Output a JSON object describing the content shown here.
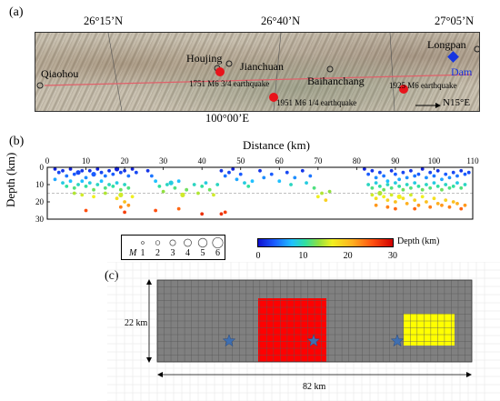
{
  "panels": {
    "a": "(a)",
    "b": "(b)",
    "c": "(c)"
  },
  "panel_a": {
    "coords_top": [
      "26°15’N",
      "26°40’N",
      "27°05’N"
    ],
    "coord_bottom": "100°00’E",
    "places": {
      "qiaohou": "Qiaohou",
      "houjing": "Houjing",
      "jianchuan": "Jianchuan",
      "baihanchang": "Baihanchang",
      "longpan": "Longpan",
      "dam": "Dam"
    },
    "earthquakes": {
      "eq1751": "1751 M6 3/4 earthquake",
      "eq1951": "1951 M6 1/4 earthquake",
      "eq1925": "1925 M6 earthquake"
    },
    "direction": "N15°E",
    "colors": {
      "quake": "#e8141b",
      "dam": "#1535e0",
      "fault": "#e0606a"
    }
  },
  "chart_data": {
    "type": "scatter",
    "xlabel": "Distance (km)",
    "ylabel": "Depth (km)",
    "xlim": [
      0,
      110
    ],
    "ylim": [
      0,
      30
    ],
    "x_ticks": [
      0,
      10,
      20,
      30,
      40,
      50,
      60,
      70,
      80,
      90,
      100,
      110
    ],
    "y_ticks": [
      0,
      10,
      20,
      30
    ],
    "y_inverted": true,
    "reference_depth_line": 15,
    "colorbar": {
      "label": "Depth (km)",
      "min": 0,
      "max": 30,
      "ticks": [
        0,
        10,
        20,
        30
      ]
    },
    "magnitude_legend": {
      "symbol": "M",
      "values": [
        1,
        2,
        3,
        4,
        5,
        6
      ]
    },
    "points": [
      [
        2,
        1,
        2
      ],
      [
        3,
        3,
        2
      ],
      [
        4,
        2,
        1
      ],
      [
        5,
        5,
        2
      ],
      [
        6,
        1,
        2
      ],
      [
        7,
        4,
        2
      ],
      [
        8,
        3,
        3
      ],
      [
        9,
        2,
        2
      ],
      [
        10,
        6,
        2
      ],
      [
        11,
        2,
        2
      ],
      [
        12,
        4,
        3
      ],
      [
        13,
        1,
        2
      ],
      [
        14,
        3,
        2
      ],
      [
        15,
        5,
        2
      ],
      [
        16,
        2,
        2
      ],
      [
        17,
        4,
        2
      ],
      [
        18,
        1,
        3
      ],
      [
        19,
        3,
        2
      ],
      [
        20,
        2,
        2
      ],
      [
        21,
        5,
        2
      ],
      [
        22,
        1,
        2
      ],
      [
        23,
        3,
        2
      ],
      [
        2,
        7,
        2
      ],
      [
        4,
        9,
        2
      ],
      [
        5,
        11,
        2
      ],
      [
        6,
        8,
        2
      ],
      [
        7,
        12,
        2
      ],
      [
        8,
        10,
        2
      ],
      [
        9,
        8,
        2
      ],
      [
        10,
        11,
        2
      ],
      [
        11,
        9,
        2
      ],
      [
        12,
        13,
        2
      ],
      [
        13,
        10,
        2
      ],
      [
        14,
        8,
        2
      ],
      [
        15,
        12,
        2
      ],
      [
        16,
        10,
        2
      ],
      [
        17,
        11,
        2
      ],
      [
        18,
        9,
        2
      ],
      [
        19,
        13,
        2
      ],
      [
        20,
        10,
        2
      ],
      [
        21,
        12,
        2
      ],
      [
        7,
        15,
        2
      ],
      [
        9,
        16,
        2
      ],
      [
        12,
        17,
        2
      ],
      [
        15,
        15,
        2
      ],
      [
        18,
        18,
        2
      ],
      [
        19,
        16,
        3
      ],
      [
        20,
        20,
        2
      ],
      [
        21,
        22,
        2
      ],
      [
        22,
        17,
        2
      ],
      [
        10,
        25,
        2
      ],
      [
        19,
        23,
        2
      ],
      [
        20,
        26,
        2
      ],
      [
        26,
        2,
        2
      ],
      [
        27,
        5,
        2
      ],
      [
        28,
        8,
        2
      ],
      [
        29,
        11,
        2
      ],
      [
        30,
        14,
        2
      ],
      [
        31,
        10,
        2
      ],
      [
        32,
        9,
        3
      ],
      [
        33,
        12,
        2
      ],
      [
        34,
        8,
        2
      ],
      [
        35,
        16,
        3
      ],
      [
        36,
        13,
        2
      ],
      [
        38,
        10,
        2
      ],
      [
        39,
        15,
        2
      ],
      [
        40,
        11,
        2
      ],
      [
        41,
        9,
        2
      ],
      [
        42,
        13,
        2
      ],
      [
        43,
        16,
        2
      ],
      [
        44,
        10,
        2
      ],
      [
        45,
        2,
        2
      ],
      [
        46,
        5,
        2
      ],
      [
        47,
        3,
        2
      ],
      [
        48,
        1,
        2
      ],
      [
        49,
        7,
        2
      ],
      [
        50,
        4,
        2
      ],
      [
        51,
        9,
        2
      ],
      [
        52,
        11,
        2
      ],
      [
        53,
        8,
        2
      ],
      [
        28,
        25,
        2
      ],
      [
        34,
        24,
        2
      ],
      [
        40,
        27,
        2
      ],
      [
        45,
        27,
        2
      ],
      [
        46,
        26,
        2
      ],
      [
        55,
        2,
        2
      ],
      [
        56,
        6,
        2
      ],
      [
        58,
        4,
        2
      ],
      [
        60,
        8,
        2
      ],
      [
        62,
        3,
        2
      ],
      [
        63,
        10,
        2
      ],
      [
        64,
        6,
        2
      ],
      [
        66,
        2,
        2
      ],
      [
        67,
        9,
        2
      ],
      [
        68,
        5,
        2
      ],
      [
        69,
        12,
        2
      ],
      [
        70,
        17,
        2
      ],
      [
        71,
        15,
        2
      ],
      [
        72,
        19,
        2
      ],
      [
        73,
        14,
        2
      ],
      [
        82,
        1,
        2
      ],
      [
        83,
        4,
        2
      ],
      [
        84,
        2,
        2
      ],
      [
        85,
        6,
        2
      ],
      [
        86,
        3,
        2
      ],
      [
        87,
        5,
        2
      ],
      [
        88,
        8,
        2
      ],
      [
        89,
        2,
        2
      ],
      [
        90,
        4,
        2
      ],
      [
        91,
        7,
        2
      ],
      [
        92,
        3,
        2
      ],
      [
        93,
        6,
        2
      ],
      [
        94,
        2,
        2
      ],
      [
        95,
        5,
        2
      ],
      [
        96,
        4,
        2
      ],
      [
        97,
        1,
        2
      ],
      [
        98,
        6,
        2
      ],
      [
        99,
        3,
        2
      ],
      [
        100,
        5,
        2
      ],
      [
        101,
        2,
        2
      ],
      [
        102,
        7,
        2
      ],
      [
        103,
        4,
        2
      ],
      [
        104,
        6,
        2
      ],
      [
        105,
        3,
        2
      ],
      [
        106,
        5,
        2
      ],
      [
        107,
        2,
        2
      ],
      [
        108,
        4,
        2
      ],
      [
        109,
        3,
        2
      ],
      [
        83,
        10,
        2
      ],
      [
        84,
        12,
        2
      ],
      [
        85,
        9,
        2
      ],
      [
        86,
        11,
        2
      ],
      [
        87,
        13,
        2
      ],
      [
        88,
        10,
        2
      ],
      [
        89,
        12,
        2
      ],
      [
        90,
        9,
        2
      ],
      [
        91,
        11,
        2
      ],
      [
        92,
        13,
        2
      ],
      [
        93,
        10,
        2
      ],
      [
        94,
        12,
        2
      ],
      [
        95,
        9,
        2
      ],
      [
        96,
        11,
        2
      ],
      [
        97,
        13,
        2
      ],
      [
        98,
        10,
        2
      ],
      [
        99,
        12,
        2
      ],
      [
        100,
        9,
        2
      ],
      [
        101,
        11,
        2
      ],
      [
        102,
        13,
        2
      ],
      [
        103,
        10,
        2
      ],
      [
        104,
        12,
        2
      ],
      [
        105,
        11,
        2
      ],
      [
        106,
        9,
        2
      ],
      [
        107,
        12,
        2
      ],
      [
        108,
        10,
        2
      ],
      [
        84,
        16,
        2
      ],
      [
        85,
        18,
        2
      ],
      [
        86,
        15,
        3
      ],
      [
        87,
        17,
        2
      ],
      [
        88,
        19,
        2
      ],
      [
        89,
        16,
        2
      ],
      [
        90,
        20,
        2
      ],
      [
        91,
        17,
        3
      ],
      [
        92,
        18,
        2
      ],
      [
        93,
        21,
        2
      ],
      [
        94,
        16,
        2
      ],
      [
        95,
        19,
        2
      ],
      [
        96,
        22,
        2
      ],
      [
        97,
        17,
        2
      ],
      [
        98,
        20,
        2
      ],
      [
        99,
        23,
        2
      ],
      [
        100,
        18,
        2
      ],
      [
        101,
        21,
        2
      ],
      [
        102,
        22,
        2
      ],
      [
        103,
        19,
        2
      ],
      [
        104,
        23,
        2
      ],
      [
        105,
        20,
        2
      ],
      [
        106,
        21,
        2
      ],
      [
        107,
        24,
        2
      ],
      [
        108,
        22,
        2
      ],
      [
        85,
        22,
        2
      ],
      [
        88,
        23,
        2
      ],
      [
        90,
        24,
        2
      ],
      [
        95,
        24,
        2
      ]
    ]
  },
  "panel_c": {
    "height_label": "22 km",
    "width_label": "82 km",
    "colors": {
      "background": "#808080",
      "red_patch": "#ff0000",
      "yellow_patch": "#ffff00",
      "star": "#3f6fb0"
    }
  }
}
